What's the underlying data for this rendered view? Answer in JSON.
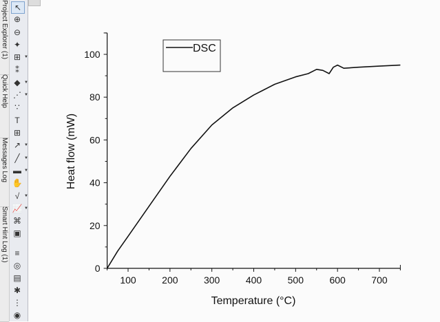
{
  "dock_tabs": [
    "Project Explorer (1)",
    "Quick Help",
    "Messages Log",
    "Smart Hint Log (1)"
  ],
  "toolbar_icons": [
    "pointer-icon",
    "zoom-in-icon",
    "zoom-out-icon",
    "data-reader-icon",
    "screen-reader-icon",
    "data-selector-icon",
    "mask-icon",
    "draw-data-icon",
    "scatter-icon",
    "text-icon",
    "add-table-icon",
    "arrow-icon",
    "line-icon",
    "rectangle-icon",
    "pan-icon",
    "formula-icon",
    "graph-icon",
    "region-icon",
    "3d-icon",
    "layers-icon",
    "gauge-icon",
    "column-icon",
    "pin-icon",
    "grid-icon",
    "record-icon"
  ],
  "chart_data": {
    "type": "line",
    "title": "",
    "xlabel": "Temperature (°C)",
    "ylabel": "Heat flow (mW)",
    "xlim": [
      50,
      750
    ],
    "ylim": [
      0,
      110
    ],
    "xticks": [
      100,
      200,
      300,
      400,
      500,
      600,
      700
    ],
    "yticks": [
      0,
      20,
      40,
      60,
      80,
      100
    ],
    "legend": {
      "placement": "top-left",
      "entries": [
        "DSC"
      ]
    },
    "grid": false,
    "series": [
      {
        "name": "DSC",
        "color": "#111111",
        "x": [
          50,
          75,
          100,
          150,
          200,
          250,
          300,
          350,
          400,
          450,
          500,
          530,
          550,
          565,
          580,
          590,
          600,
          615,
          650,
          700,
          750
        ],
        "y": [
          0,
          8,
          15,
          29,
          43,
          56,
          67,
          75,
          81,
          86,
          89.5,
          91,
          93,
          92.5,
          91,
          94,
          95,
          93.5,
          94,
          94.5,
          95
        ]
      }
    ]
  }
}
